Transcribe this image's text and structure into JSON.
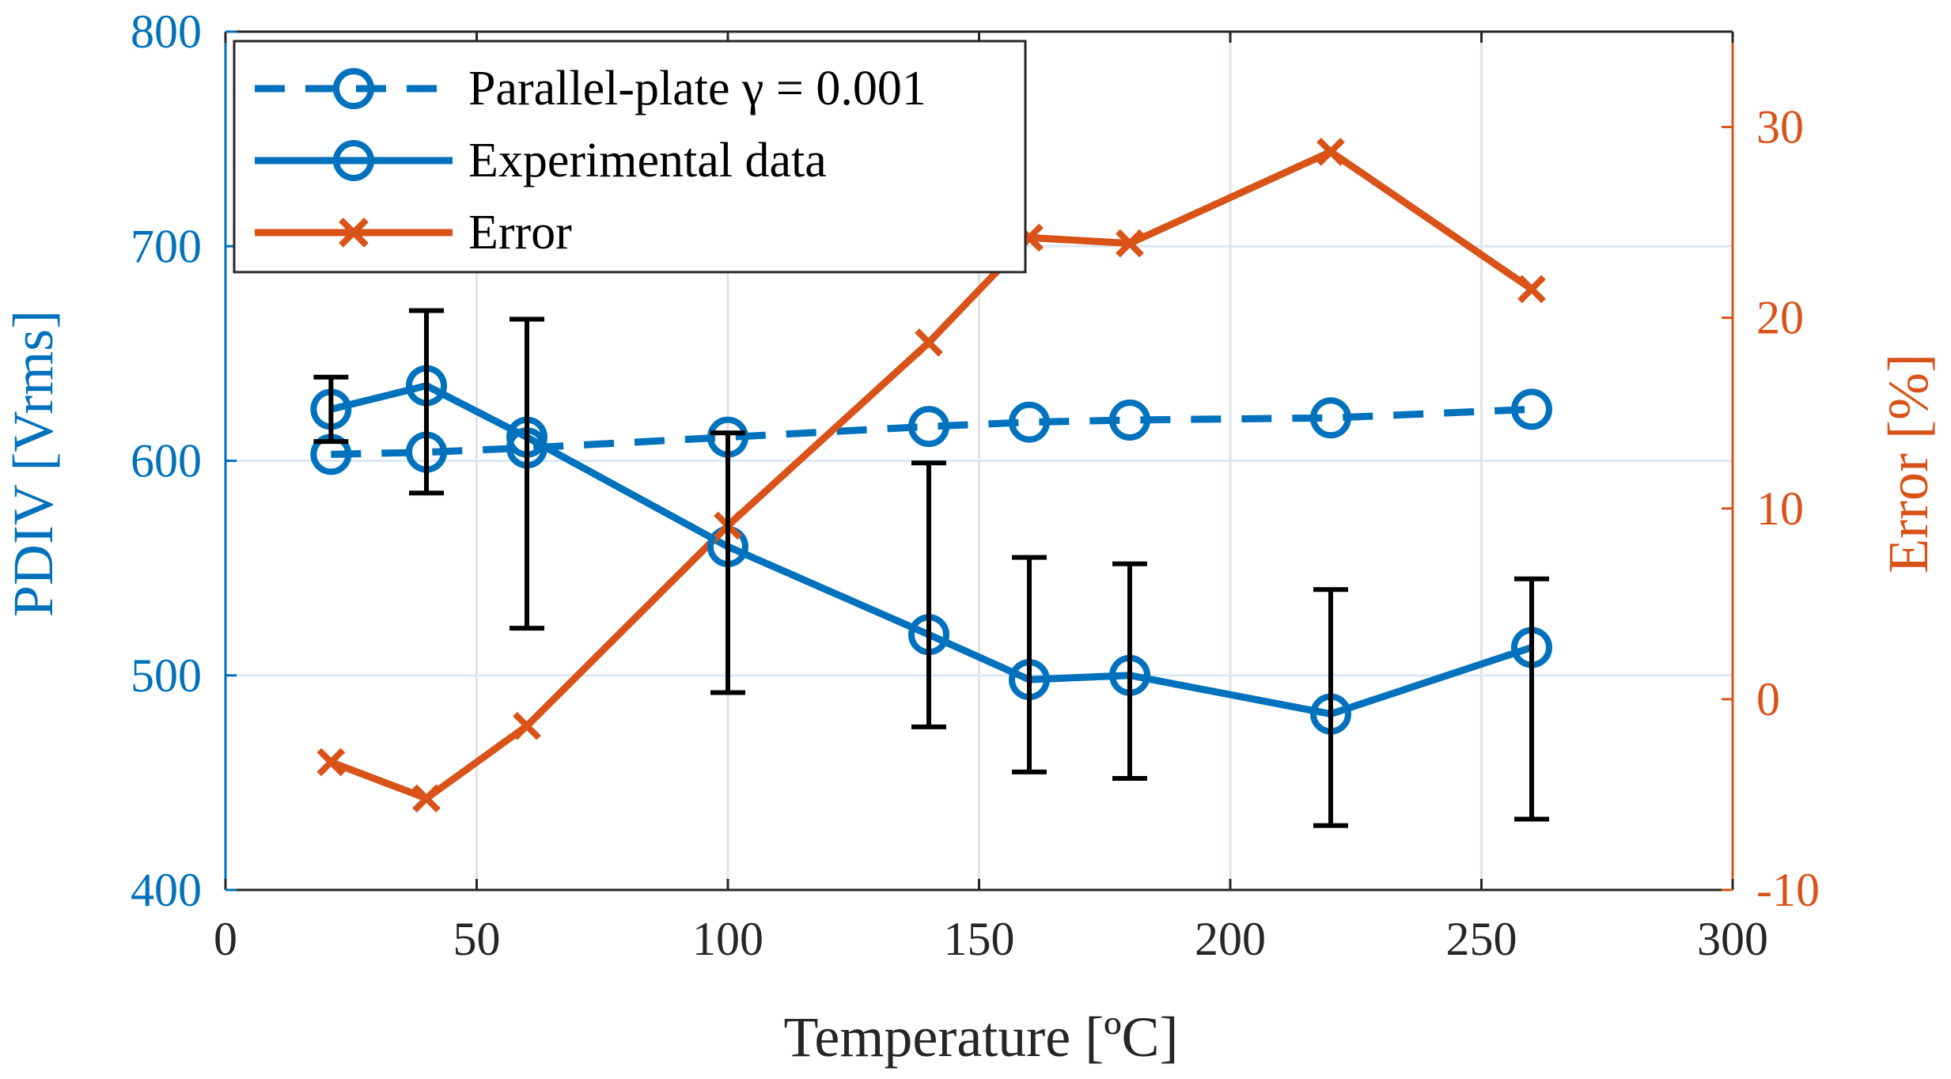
{
  "chart_data": {
    "type": "line",
    "title": "",
    "xlabel": "Temperature [ºC]",
    "ylabel_left": "PDIV [Vrms]",
    "ylabel_right": "Error [%]",
    "xlim": [
      0,
      300
    ],
    "ylim_left": [
      400,
      800
    ],
    "ylim_right": [
      -10,
      35
    ],
    "xticks": [
      "0",
      "50",
      "100",
      "150",
      "200",
      "250",
      "300"
    ],
    "yticks_left": [
      "400",
      "500",
      "600",
      "700",
      "800"
    ],
    "yticks_right": [
      "-10",
      "0",
      "10",
      "20",
      "30"
    ],
    "grid": true,
    "legend_location": "top-left",
    "x": [
      21,
      40,
      60,
      100,
      140,
      160,
      180,
      220,
      260
    ],
    "series": [
      {
        "name": "Parallel-plate γ = 0.001",
        "axis": "left",
        "style": "dashed",
        "marker": "circle",
        "color": "#0072BD",
        "values": [
          603,
          604,
          606,
          611,
          616,
          618,
          619,
          620,
          624
        ]
      },
      {
        "name": "Experimental data",
        "axis": "left",
        "style": "solid",
        "marker": "circle",
        "color": "#0072BD",
        "values": [
          624,
          635,
          611,
          560,
          519,
          498,
          500,
          482,
          513
        ],
        "error_low": [
          609,
          585,
          522,
          492,
          476,
          455,
          452,
          430,
          433
        ],
        "error_high": [
          639,
          670,
          666,
          613,
          599,
          555,
          552,
          540,
          545
        ]
      },
      {
        "name": "Error",
        "axis": "right",
        "style": "solid",
        "marker": "x",
        "color": "#D95319",
        "values": [
          -3.3,
          -5.2,
          -1.4,
          9.1,
          18.7,
          24.2,
          23.9,
          28.7,
          21.5
        ]
      }
    ]
  }
}
